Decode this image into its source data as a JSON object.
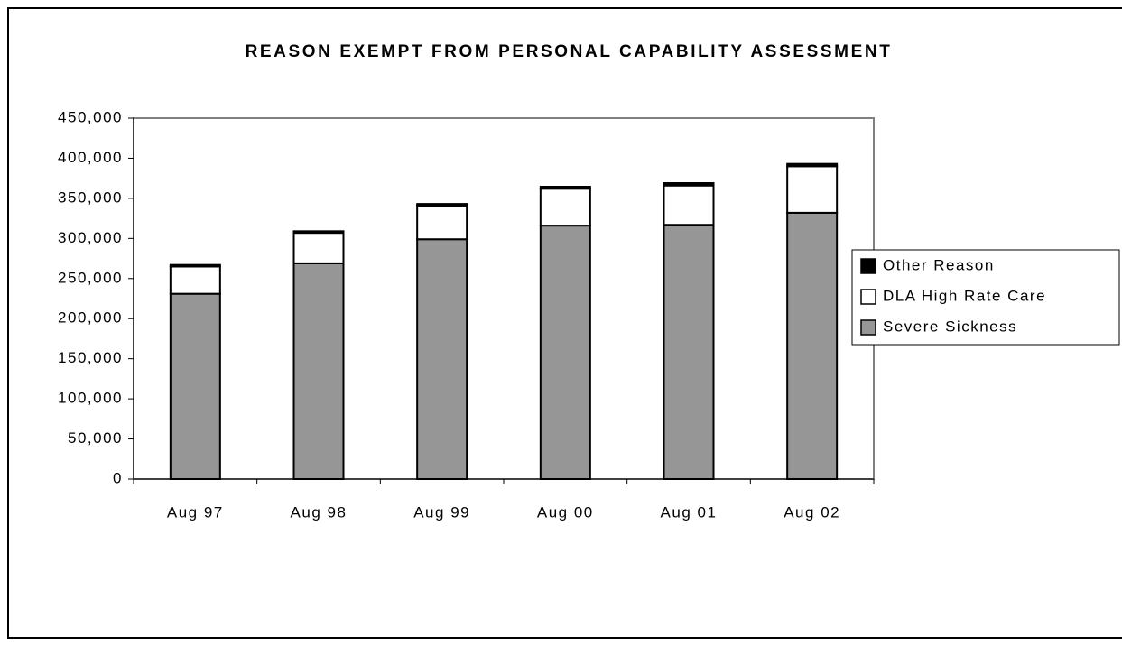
{
  "chart_data": {
    "type": "stacked_bar",
    "title": "REASON EXEMPT FROM PERSONAL CAPABILITY ASSESSMENT",
    "categories": [
      "Aug 97",
      "Aug 98",
      "Aug 99",
      "Aug 00",
      "Aug 01",
      "Aug 02"
    ],
    "series": [
      {
        "name": "Severe Sickness",
        "color": "#969696",
        "values": [
          231000,
          269000,
          299000,
          316000,
          317000,
          332000
        ]
      },
      {
        "name": "DLA High Rate Care",
        "color": "#ffffff",
        "values": [
          34000,
          38000,
          42000,
          46000,
          49000,
          58000
        ]
      },
      {
        "name": "Other Reason",
        "color": "#000000",
        "values": [
          2000,
          2000,
          2000,
          2500,
          3000,
          3000
        ]
      }
    ],
    "ylim": [
      0,
      450000
    ],
    "yticks": [
      0,
      {
        "value": 50000,
        "label": "50,000"
      },
      {
        "value": 100000,
        "label": "100,000"
      },
      {
        "value": 150000,
        "label": "150,000"
      },
      {
        "value": 200000,
        "label": "200,000"
      },
      {
        "value": 250000,
        "label": "250,000"
      },
      {
        "value": 300000,
        "label": "300,000"
      },
      {
        "value": 350000,
        "label": "350,000"
      },
      {
        "value": 400000,
        "label": "400,000"
      },
      {
        "value": 450000,
        "label": "450,000"
      }
    ],
    "legend": "right"
  }
}
